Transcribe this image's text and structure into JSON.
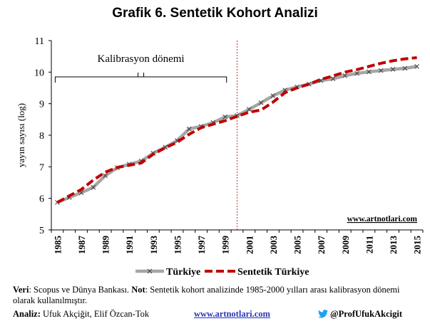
{
  "title": "Grafik 6. Sentetik Kohort Analizi",
  "chart_data": {
    "type": "line",
    "ylabel": "yayın sayısı (log)",
    "xlabel": "",
    "ylim": [
      5,
      11
    ],
    "yticks": [
      5,
      6,
      7,
      8,
      9,
      10,
      11
    ],
    "xlim": [
      1984.5,
      2015.5
    ],
    "xticks": [
      1985,
      1987,
      1989,
      1991,
      1993,
      1995,
      1997,
      1999,
      2001,
      2003,
      2005,
      2007,
      2009,
      2011,
      2013,
      2015
    ],
    "grid": false,
    "legend_position": "bottom",
    "series": [
      {
        "name": "Türkiye",
        "color": "#a6a6a6",
        "marker": "x",
        "x": [
          1985,
          1986,
          1987,
          1988,
          1989,
          1990,
          1991,
          1992,
          1993,
          1994,
          1995,
          1996,
          1997,
          1998,
          1999,
          2000,
          2001,
          2002,
          2003,
          2004,
          2005,
          2006,
          2007,
          2008,
          2009,
          2010,
          2011,
          2012,
          2013,
          2014,
          2015
        ],
        "values": [
          5.87,
          6.03,
          6.18,
          6.35,
          6.72,
          6.97,
          7.08,
          7.18,
          7.43,
          7.62,
          7.83,
          8.2,
          8.28,
          8.4,
          8.58,
          8.62,
          8.82,
          9.03,
          9.25,
          9.43,
          9.53,
          9.62,
          9.73,
          9.79,
          9.89,
          9.96,
          10.01,
          10.05,
          10.09,
          10.12,
          10.18
        ]
      },
      {
        "name": "Sentetik Türkiye",
        "color": "#c00000",
        "dashed": true,
        "x": [
          1985,
          1986,
          1987,
          1988,
          1989,
          1990,
          1991,
          1992,
          1993,
          1994,
          1995,
          1996,
          1997,
          1998,
          1999,
          2000,
          2001,
          2002,
          2003,
          2004,
          2005,
          2006,
          2007,
          2008,
          2009,
          2010,
          2011,
          2012,
          2013,
          2014,
          2015
        ],
        "values": [
          5.87,
          6.08,
          6.28,
          6.58,
          6.83,
          6.98,
          7.05,
          7.12,
          7.4,
          7.6,
          7.78,
          8.03,
          8.24,
          8.35,
          8.46,
          8.6,
          8.73,
          8.8,
          9.05,
          9.35,
          9.5,
          9.62,
          9.77,
          9.88,
          10.0,
          10.08,
          10.18,
          10.28,
          10.36,
          10.42,
          10.46
        ]
      }
    ],
    "annotations": {
      "calibration_label": "Kalibrasyon dönemi",
      "calibration_start": 1985,
      "calibration_end": 1999,
      "treatment_line_x": 2000,
      "watermark": "www.artnotlari.com"
    }
  },
  "footer": {
    "veri_label": "Veri",
    "veri_text": ": Scopus ve Dünya Bankası. ",
    "not_label": "Not",
    "not_text": ": Sentetik kohort analizinde 1985-2000 yılları arası kalibrasyon dönemi olarak kullanılmıştır.",
    "analiz_label": "Analiz:",
    "analiz_text": " Ufuk Akçiğit, Elif Özcan-Tok",
    "site": "www.artnotlari.com",
    "twitter": "@ProfUfukAkcigit"
  },
  "colors": {
    "twitter_bird": "#1da1f2",
    "site_link": "#2a35b8"
  }
}
